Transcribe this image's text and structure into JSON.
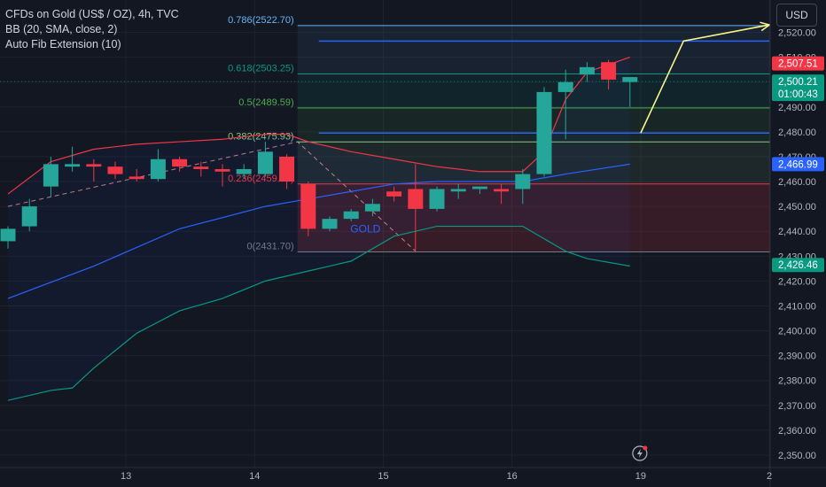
{
  "header": {
    "symbol": "CFDs on Gold (US$ / OZ), 4h, TVC",
    "indicators": [
      "BB (20, SMA, close, 2)",
      "Auto Fib Extension (10)"
    ],
    "currency_label": "USD"
  },
  "colors": {
    "background": "#131722",
    "up": "#26a69a",
    "down": "#f23645",
    "bb_upper": "#f23645",
    "bb_basis": "#2962ff",
    "bb_lower": "#089981",
    "user_line": "#2962ff",
    "arrow": "#f5f58a",
    "fib_0": "#787b86",
    "fib_0236": "#f23645",
    "fib_0382": "#81c784",
    "fib_05": "#4caf50",
    "fib_0618": "#089981",
    "fib_0786": "#64b5f6"
  },
  "chart_data": {
    "type": "candlestick",
    "price_range": [
      2345,
      2533
    ],
    "y_ticks": [
      "2,350.00",
      "2,360.00",
      "2,370.00",
      "2,380.00",
      "2,390.00",
      "2,400.00",
      "2,410.00",
      "2,420.00",
      "2,430.00",
      "2,440.00",
      "2,450.00",
      "2,460.00",
      "2,470.00",
      "2,480.00",
      "2,490.00",
      "2,500.00",
      "2,510.00",
      "2,520.00"
    ],
    "x_ticks": [
      {
        "label": "13",
        "bar": 5.5
      },
      {
        "label": "14",
        "bar": 11.5
      },
      {
        "label": "15",
        "bar": 17.5
      },
      {
        "label": "16",
        "bar": 23.5
      },
      {
        "label": "19",
        "bar": 29.5
      },
      {
        "label": "2",
        "bar": 35.5
      }
    ],
    "candles": [
      {
        "o": 2436,
        "h": 2442,
        "l": 2433,
        "c": 2441
      },
      {
        "o": 2442,
        "h": 2453,
        "l": 2440,
        "c": 2450
      },
      {
        "o": 2458,
        "h": 2470,
        "l": 2454,
        "c": 2467
      },
      {
        "o": 2466,
        "h": 2474,
        "l": 2464,
        "c": 2467
      },
      {
        "o": 2467,
        "h": 2469,
        "l": 2460,
        "c": 2466
      },
      {
        "o": 2466,
        "h": 2468,
        "l": 2461,
        "c": 2463
      },
      {
        "o": 2462,
        "h": 2465,
        "l": 2460,
        "c": 2461
      },
      {
        "o": 2461,
        "h": 2473,
        "l": 2460,
        "c": 2469
      },
      {
        "o": 2469,
        "h": 2470,
        "l": 2464,
        "c": 2466
      },
      {
        "o": 2466,
        "h": 2468,
        "l": 2462,
        "c": 2465
      },
      {
        "o": 2465,
        "h": 2467,
        "l": 2458,
        "c": 2464
      },
      {
        "o": 2463,
        "h": 2467,
        "l": 2461,
        "c": 2465
      },
      {
        "o": 2463,
        "h": 2476,
        "l": 2462,
        "c": 2472
      },
      {
        "o": 2470,
        "h": 2471,
        "l": 2457,
        "c": 2460
      },
      {
        "o": 2459,
        "h": 2460,
        "l": 2438,
        "c": 2441
      },
      {
        "o": 2441,
        "h": 2446,
        "l": 2440,
        "c": 2445
      },
      {
        "o": 2445,
        "h": 2449,
        "l": 2444,
        "c": 2448
      },
      {
        "o": 2448,
        "h": 2453,
        "l": 2446,
        "c": 2451
      },
      {
        "o": 2456,
        "h": 2458,
        "l": 2452,
        "c": 2454
      },
      {
        "o": 2457,
        "h": 2467,
        "l": 2432,
        "c": 2449
      },
      {
        "o": 2449,
        "h": 2458,
        "l": 2448,
        "c": 2457
      },
      {
        "o": 2456,
        "h": 2459,
        "l": 2453,
        "c": 2457
      },
      {
        "o": 2457,
        "h": 2458,
        "l": 2455,
        "c": 2458
      },
      {
        "o": 2457,
        "h": 2459,
        "l": 2451,
        "c": 2456
      },
      {
        "o": 2457,
        "h": 2465,
        "l": 2451,
        "c": 2463
      },
      {
        "o": 2463,
        "h": 2498,
        "l": 2462,
        "c": 2496
      },
      {
        "o": 2496,
        "h": 2505,
        "l": 2477,
        "c": 2500
      },
      {
        "o": 2503,
        "h": 2508,
        "l": 2500,
        "c": 2506
      },
      {
        "o": 2508,
        "h": 2509,
        "l": 2497,
        "c": 2501
      },
      {
        "o": 2500,
        "h": 2502,
        "l": 2490,
        "c": 2502
      }
    ],
    "bb_upper": [
      [
        0,
        2455
      ],
      [
        2,
        2468
      ],
      [
        4,
        2473
      ],
      [
        6,
        2475
      ],
      [
        8,
        2476
      ],
      [
        10,
        2477
      ],
      [
        12,
        2479
      ],
      [
        13,
        2479
      ],
      [
        14,
        2476
      ],
      [
        16,
        2472
      ],
      [
        18,
        2469
      ],
      [
        20,
        2466
      ],
      [
        22,
        2464
      ],
      [
        24,
        2464
      ],
      [
        25,
        2472
      ],
      [
        26,
        2493
      ],
      [
        27,
        2504
      ],
      [
        29,
        2510
      ]
    ],
    "bb_basis": [
      [
        0,
        2413
      ],
      [
        4,
        2426
      ],
      [
        8,
        2441
      ],
      [
        12,
        2450
      ],
      [
        14,
        2453
      ],
      [
        16,
        2456
      ],
      [
        18,
        2459
      ],
      [
        20,
        2460
      ],
      [
        22,
        2460
      ],
      [
        24,
        2460
      ],
      [
        26,
        2463
      ],
      [
        29,
        2467
      ]
    ],
    "bb_lower": [
      [
        0,
        2372
      ],
      [
        2,
        2376
      ],
      [
        3,
        2377
      ],
      [
        4,
        2385
      ],
      [
        6,
        2399
      ],
      [
        8,
        2408
      ],
      [
        10,
        2413
      ],
      [
        12,
        2420
      ],
      [
        14,
        2424
      ],
      [
        16,
        2428
      ],
      [
        18,
        2438
      ],
      [
        20,
        2442
      ],
      [
        22,
        2442
      ],
      [
        24,
        2442
      ],
      [
        26,
        2432
      ],
      [
        27,
        2429
      ],
      [
        29,
        2426
      ]
    ],
    "fib_levels": [
      {
        "ratio": 0.786,
        "label": "0.786(2522.70)",
        "price": 2522.7,
        "key": "fib_0786"
      },
      {
        "ratio": 0.618,
        "label": "0.618(2503.25)",
        "price": 2503.25,
        "key": "fib_0618"
      },
      {
        "ratio": 0.5,
        "label": "0.5(2489.59)",
        "price": 2489.59,
        "key": "fib_05"
      },
      {
        "ratio": 0.382,
        "label": "0.382(2475.93)",
        "price": 2475.93,
        "key": "fib_0382"
      },
      {
        "ratio": 0.236,
        "label": "0.236(2459.02)",
        "price": 2459.02,
        "key": "fib_0236"
      },
      {
        "ratio": 0,
        "label": "0(2431.70)",
        "price": 2431.7,
        "key": "fib_0"
      }
    ],
    "fib_start_bar": 13.5,
    "user_lines": [
      {
        "price": 2516.5,
        "from": 13.5,
        "to": 35.5
      },
      {
        "price": 2479.5,
        "from": 13.5,
        "to": 35.5
      }
    ],
    "trend_arrow": [
      {
        "bar": 29.5,
        "price": 2479.5
      },
      {
        "bar": 31.5,
        "price": 2516.5
      },
      {
        "bar": 35.5,
        "price": 2523
      }
    ],
    "dashed_path": [
      {
        "bar": 0,
        "price": 2450
      },
      {
        "bar": 13.5,
        "price": 2476
      },
      {
        "bar": 19,
        "price": 2432
      }
    ],
    "gold_label": "GOLD",
    "price_badges": [
      {
        "text": "2,507.51",
        "price": 2507.51,
        "color": "#f23645"
      },
      {
        "text": "2,500.21",
        "price": 2500.21,
        "color": "#089981",
        "sub": "01:00:43"
      },
      {
        "text": "2,466.99",
        "price": 2466.99,
        "color": "#2962ff"
      },
      {
        "text": "2,426.46",
        "price": 2426.46,
        "color": "#089981"
      }
    ]
  }
}
